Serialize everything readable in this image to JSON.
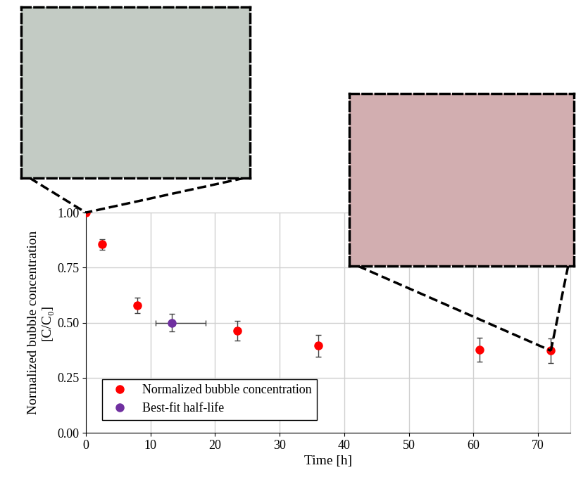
{
  "chart_data": {
    "type": "scatter",
    "xlabel": "Time [h]",
    "ylabel": "Normalized bubble concentration\n[C/C₀]",
    "xlim": [
      0,
      75
    ],
    "xticks": [
      0,
      10,
      20,
      30,
      40,
      50,
      60,
      70
    ],
    "ylim": [
      0,
      1.0
    ],
    "yticks": [
      {
        "value": 0,
        "label": "0.00"
      },
      {
        "value": 0.25,
        "label": "0.25"
      },
      {
        "value": 0.5,
        "label": "0.50"
      },
      {
        "value": 0.75,
        "label": "0.75"
      },
      {
        "value": 1.0,
        "label": "1.00"
      }
    ],
    "grid": true,
    "legend": "lower left",
    "marker": "o",
    "series": [
      {
        "name": "Normalized bubble concentration",
        "color": "#ff0000",
        "x": [
          0,
          2.5,
          8,
          23.5,
          36,
          61,
          72
        ],
        "values": [
          1.0,
          0.855,
          0.58,
          0.463,
          0.395,
          0.377,
          0.373
        ],
        "y_err": [
          0,
          0.025,
          0.035,
          0.045,
          0.05,
          0.055,
          0.055
        ]
      },
      {
        "name": "Best-fit half-life",
        "color": "#7030a0",
        "x": [
          13.3
        ],
        "values": [
          0.5
        ],
        "y_err": [
          0.04
        ],
        "x_err_lower": [
          2.5
        ],
        "x_err_upper": [
          5.2
        ]
      }
    ]
  }
}
